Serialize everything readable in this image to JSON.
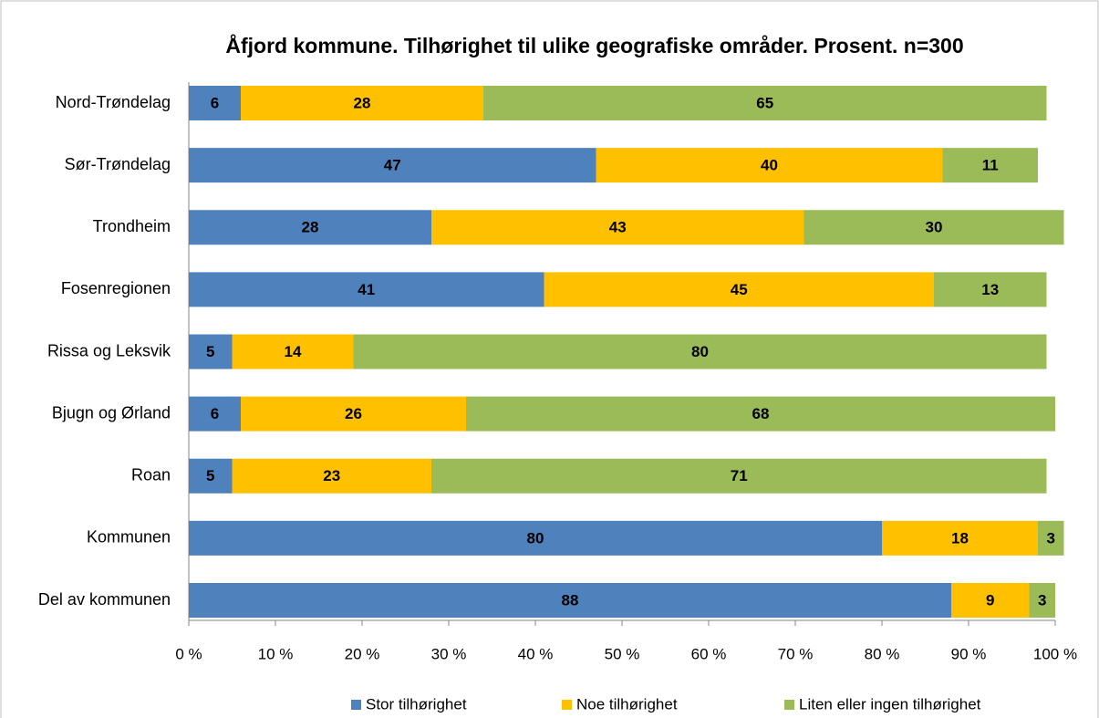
{
  "chart_data": {
    "type": "stacked-bar-horizontal",
    "title": "Åfjord kommune. Tilhørighet til ulike geografiske områder. Prosent. n=300",
    "categories": [
      "Nord-Trøndelag",
      "Sør-Trøndelag",
      "Trondheim",
      "Fosenregionen",
      "Rissa og Leksvik",
      "Bjugn og Ørland",
      "Roan",
      "Kommunen",
      "Del av kommunen"
    ],
    "series": [
      {
        "name": "Stor tilhørighet",
        "color": "#4f81bd",
        "values": [
          6,
          47,
          28,
          41,
          5,
          6,
          5,
          80,
          88
        ]
      },
      {
        "name": "Noe tilhørighet",
        "color": "#ffc000",
        "values": [
          28,
          40,
          43,
          45,
          14,
          26,
          23,
          18,
          9
        ]
      },
      {
        "name": "Liten eller ingen tilhørighet",
        "color": "#9bbb59",
        "values": [
          65,
          11,
          30,
          13,
          80,
          68,
          71,
          3,
          3
        ]
      }
    ],
    "xlim": [
      0,
      100
    ],
    "xticks": [
      {
        "value": 0,
        "label": "0 %"
      },
      {
        "value": 10,
        "label": "10 %"
      },
      {
        "value": 20,
        "label": "20 %"
      },
      {
        "value": 30,
        "label": "30 %"
      },
      {
        "value": 40,
        "label": "40 %"
      },
      {
        "value": 50,
        "label": "50 %"
      },
      {
        "value": 60,
        "label": "60 %"
      },
      {
        "value": 70,
        "label": "70 %"
      },
      {
        "value": 80,
        "label": "80 %"
      },
      {
        "value": 90,
        "label": "90 %"
      },
      {
        "value": 100,
        "label": "100 %"
      }
    ],
    "legend": "bottom"
  }
}
